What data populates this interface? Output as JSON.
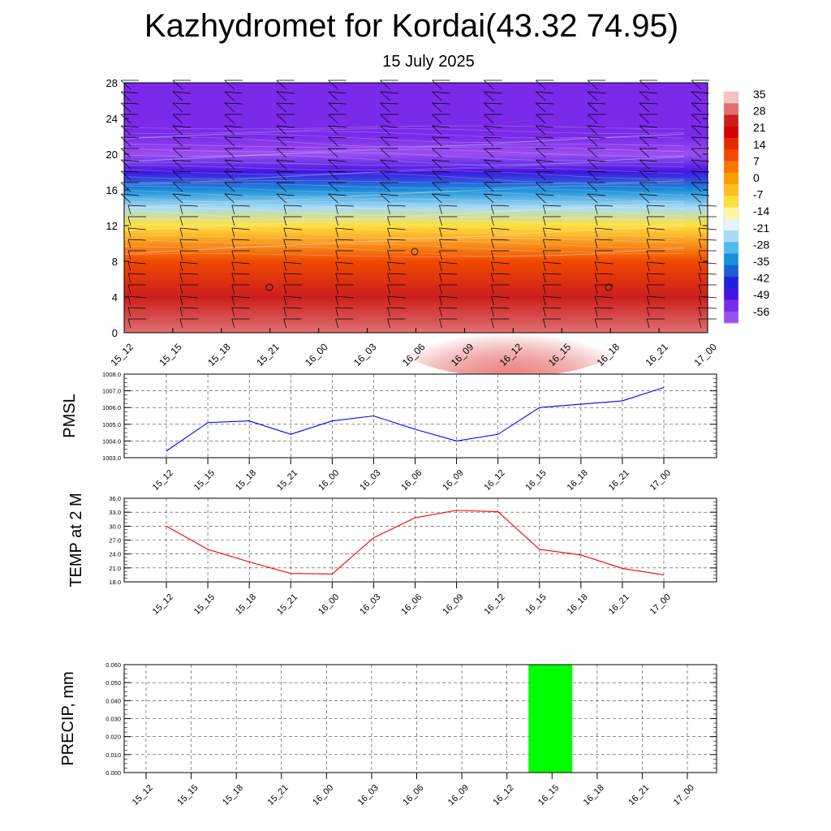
{
  "title": "Kazhydromet for Kordai(43.32 74.95)",
  "subtitle": "15 July 2025",
  "time_labels": [
    "15_12",
    "15_15",
    "15_18",
    "15_21",
    "16_00",
    "16_03",
    "16_06",
    "16_09",
    "16_12",
    "16_15",
    "16_18",
    "16_21",
    "17_00"
  ],
  "chart_data": [
    {
      "type": "heatmap",
      "title": "",
      "x": [
        "15_12",
        "15_15",
        "15_18",
        "15_21",
        "16_00",
        "16_03",
        "16_06",
        "16_09",
        "16_12",
        "16_15",
        "16_18",
        "16_21",
        "17_00"
      ],
      "ylim": [
        0,
        28
      ],
      "yticks": [
        0,
        4,
        8,
        12,
        16,
        20,
        24,
        28
      ],
      "colorbar_labels": [
        "35",
        "28",
        "21",
        "14",
        "7",
        "0",
        "-7",
        "-14",
        "-21",
        "-28",
        "-35",
        "-42",
        "-49",
        "-56"
      ],
      "colorbar_colors": [
        "#f3c2c2",
        "#e07070",
        "#cc1e1e",
        "#d60000",
        "#e52a00",
        "#f04a00",
        "#f77500",
        "#fb9d00",
        "#fdbe1e",
        "#ffdf3c",
        "#fff8a0",
        "#e8f4ff",
        "#a8dcf4",
        "#4dbcec",
        "#1a8ed8",
        "#1a5fd6",
        "#2222dd",
        "#4414e0",
        "#7a2ae8",
        "#9a4ff0"
      ],
      "profile_temperature": [
        {
          "height": 0,
          "value": 29
        },
        {
          "height": 4,
          "value": 24
        },
        {
          "height": 8,
          "value": 10
        },
        {
          "height": 12,
          "value": -10
        },
        {
          "height": 14,
          "value": -24
        },
        {
          "height": 16,
          "value": -36
        },
        {
          "height": 18,
          "value": -48
        },
        {
          "height": 20,
          "value": -58
        },
        {
          "height": 22,
          "value": -56
        },
        {
          "height": 28,
          "value": -56
        }
      ],
      "wind_barbs": "present"
    },
    {
      "type": "line",
      "ylabel": "PMSL",
      "x": [
        "15_12",
        "15_15",
        "15_18",
        "15_21",
        "16_00",
        "16_03",
        "16_06",
        "16_09",
        "16_12",
        "16_15",
        "16_18",
        "16_21",
        "17_00"
      ],
      "series": [
        {
          "values": [
            1003.4,
            1005.1,
            1005.2,
            1004.4,
            1005.2,
            1005.5,
            1004.7,
            1004.0,
            1004.4,
            1006.0,
            1006.2,
            1006.4,
            1007.2
          ],
          "color": "#0000ff"
        }
      ],
      "ylim": [
        1003.0,
        1008.0
      ],
      "yticks": [
        "1003.0",
        "1004.0",
        "1005.0",
        "1006.0",
        "1007.0",
        "1008.0"
      ],
      "grid": true
    },
    {
      "type": "line",
      "ylabel": "TEMP at 2 M",
      "x": [
        "15_12",
        "15_15",
        "15_18",
        "15_21",
        "16_00",
        "16_03",
        "16_06",
        "16_09",
        "16_12",
        "16_15",
        "16_18",
        "16_21",
        "17_00"
      ],
      "series": [
        {
          "values": [
            30.0,
            25.0,
            22.3,
            19.8,
            19.7,
            27.5,
            31.8,
            33.4,
            33.1,
            25.0,
            23.8,
            20.9,
            19.5
          ],
          "color": "#ff0000"
        }
      ],
      "ylim": [
        18.0,
        36.0
      ],
      "yticks": [
        "18.0",
        "21.0",
        "24.0",
        "27.0",
        "30.0",
        "33.0",
        "36.0"
      ],
      "grid": true
    },
    {
      "type": "bar",
      "ylabel": "PRECIP, mm",
      "categories": [
        "15_12",
        "15_15",
        "15_18",
        "15_21",
        "16_00",
        "16_03",
        "16_06",
        "16_09",
        "16_12",
        "16_15",
        "16_18",
        "16_21",
        "17_00"
      ],
      "values": [
        0,
        0,
        0,
        0,
        0,
        0,
        0,
        0,
        0,
        0.06,
        0,
        0,
        0
      ],
      "color": "#00ff00",
      "ylim": [
        0,
        0.06
      ],
      "yticks": [
        "0.000",
        "0.010",
        "0.020",
        "0.030",
        "0.040",
        "0.050",
        "0.060"
      ],
      "grid": true
    }
  ]
}
